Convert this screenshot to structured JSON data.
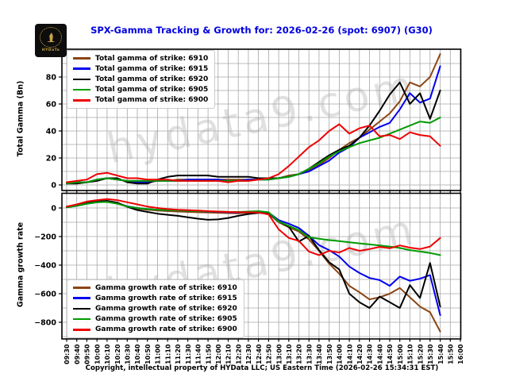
{
  "header": {
    "title": "SPX-Gamma Tracking & Growth for: 2026-02-26 (spot: 6907) (G30)",
    "logo_text": "HYDaTa"
  },
  "watermark": {
    "text": "hydata9.com"
  },
  "footer": {
    "copyright": "Copyright, intellectual property of HYData LLC; US Eastern Time (2026-02-26 15:34:31 EST)"
  },
  "colors": {
    "title": "#0000e0",
    "grid": "#a6a6a6",
    "spine": "#000000",
    "watermark_gray": "#d9d9d9"
  },
  "chart_data": {
    "type": "line",
    "x_tick_labels": [
      "09:30",
      "09:40",
      "09:50",
      "10:00",
      "10:10",
      "10:20",
      "10:30",
      "10:40",
      "10:50",
      "11:00",
      "11:10",
      "11:20",
      "11:30",
      "11:40",
      "11:50",
      "12:00",
      "12:10",
      "12:20",
      "12:30",
      "12:40",
      "12:50",
      "13:00",
      "13:10",
      "13:20",
      "13:30",
      "13:40",
      "13:50",
      "14:00",
      "14:10",
      "14:20",
      "14:30",
      "14:40",
      "14:50",
      "15:00",
      "15:10",
      "15:20",
      "15:30",
      "15:40",
      "15:50",
      "16:00"
    ],
    "sample_interval_minutes": 10,
    "data_start": "09:30",
    "data_end": "15:40",
    "top_panel": {
      "ylabel": "Total Gamma (Bn)",
      "ylim": [
        -4,
        100.5
      ],
      "ytick_values": [
        0,
        20,
        40,
        60,
        80
      ],
      "ytick_labels": [
        "0",
        "20",
        "40",
        "60",
        "80"
      ],
      "grid_step": 10,
      "legend": [
        "Total gamma of strike: 6910",
        "Total gamma of strike: 6915",
        "Total gamma of strike: 6920",
        "Total gamma of strike: 6905",
        "Total gamma of strike: 6900"
      ],
      "series": [
        {
          "name": "6910",
          "color": "#8b4513",
          "values": [
            1,
            2,
            2,
            4,
            5,
            4,
            3,
            3,
            3,
            3,
            3,
            4,
            4,
            4,
            4,
            4,
            4,
            4,
            4,
            4,
            5,
            5,
            7,
            8,
            11,
            15,
            20,
            26,
            31,
            35,
            41,
            47,
            53,
            62,
            76,
            73,
            80,
            97
          ]
        },
        {
          "name": "6915",
          "color": "#0000ee",
          "values": [
            1,
            2,
            2,
            4,
            5,
            4,
            3,
            2,
            2,
            3,
            3,
            3,
            4,
            4,
            4,
            4,
            3,
            3,
            4,
            4,
            4,
            5,
            6,
            8,
            10,
            14,
            18,
            24,
            28,
            35,
            39,
            43,
            46,
            56,
            68,
            61,
            64,
            88
          ]
        },
        {
          "name": "6920",
          "color": "#000000",
          "values": [
            1,
            1,
            2,
            3,
            5,
            5,
            2,
            1,
            1,
            4,
            6,
            7,
            7,
            7,
            7,
            6,
            6,
            6,
            6,
            5,
            5,
            5,
            6,
            8,
            12,
            17,
            22,
            26,
            29,
            35,
            44,
            55,
            67,
            76,
            60,
            68,
            49,
            70
          ]
        },
        {
          "name": "6905",
          "color": "#009b00",
          "values": [
            1,
            2,
            2,
            4,
            5,
            4,
            3,
            3,
            3,
            3,
            3,
            3,
            3,
            3,
            3,
            3,
            3,
            3,
            3,
            4,
            4,
            5,
            6,
            8,
            12,
            16,
            21,
            25,
            28,
            31,
            33,
            35,
            38,
            41,
            44,
            47,
            46,
            50
          ]
        },
        {
          "name": "6900",
          "color": "#ee0000",
          "values": [
            2,
            3,
            4,
            8,
            9,
            7,
            5,
            5,
            4,
            4,
            4,
            3,
            3,
            3,
            3,
            3,
            2,
            3,
            3,
            4,
            5,
            8,
            14,
            21,
            28,
            33,
            40,
            45,
            38,
            42,
            44,
            36,
            37,
            34,
            39,
            37,
            36,
            29
          ]
        }
      ]
    },
    "bottom_panel": {
      "ylabel": "Gamma growth rate",
      "ylim": [
        -917,
        105
      ],
      "ytick_values": [
        0,
        -200,
        -400,
        -600,
        -800
      ],
      "ytick_labels": [
        "0",
        "−200",
        "−400",
        "−600",
        "−800"
      ],
      "grid_step": 100,
      "legend": [
        "Gamma growth rate of strike: 6910",
        "Gamma growth rate of strike: 6915",
        "Gamma growth rate of strike: 6920",
        "Gamma growth rate of strike: 6905",
        "Gamma growth rate of strike: 6900"
      ],
      "series": [
        {
          "name": "6910",
          "color": "#8b4513",
          "values": [
            5,
            15,
            30,
            40,
            45,
            30,
            10,
            -5,
            -12,
            -18,
            -22,
            -25,
            -28,
            -30,
            -32,
            -34,
            -36,
            -38,
            -33,
            -30,
            -40,
            -100,
            -135,
            -165,
            -220,
            -300,
            -390,
            -460,
            -545,
            -590,
            -640,
            -625,
            -600,
            -560,
            -625,
            -690,
            -730,
            -865
          ]
        },
        {
          "name": "6915",
          "color": "#0000ee",
          "values": [
            5,
            15,
            30,
            40,
            45,
            32,
            12,
            0,
            -8,
            -12,
            -15,
            -18,
            -20,
            -22,
            -25,
            -27,
            -30,
            -32,
            -28,
            -25,
            -32,
            -85,
            -110,
            -140,
            -195,
            -260,
            -295,
            -340,
            -410,
            -455,
            -490,
            -505,
            -545,
            -480,
            -510,
            -495,
            -470,
            -750
          ]
        },
        {
          "name": "6920",
          "color": "#000000",
          "values": [
            5,
            18,
            35,
            45,
            50,
            38,
            8,
            -15,
            -28,
            -40,
            -48,
            -55,
            -65,
            -75,
            -83,
            -80,
            -70,
            -55,
            -42,
            -35,
            -35,
            -95,
            -130,
            -235,
            -195,
            -295,
            -380,
            -430,
            -600,
            -660,
            -700,
            -620,
            -660,
            -700,
            -540,
            -630,
            -385,
            -690
          ]
        },
        {
          "name": "6905",
          "color": "#009b00",
          "values": [
            5,
            15,
            30,
            40,
            42,
            30,
            10,
            0,
            -8,
            -12,
            -15,
            -18,
            -20,
            -22,
            -24,
            -25,
            -27,
            -28,
            -25,
            -22,
            -30,
            -95,
            -125,
            -155,
            -205,
            -215,
            -225,
            -232,
            -240,
            -248,
            -255,
            -262,
            -270,
            -280,
            -295,
            -305,
            -315,
            -330
          ]
        },
        {
          "name": "6900",
          "color": "#ee0000",
          "values": [
            10,
            25,
            45,
            55,
            62,
            55,
            40,
            25,
            10,
            0,
            -8,
            -12,
            -15,
            -18,
            -22,
            -25,
            -28,
            -30,
            -30,
            -32,
            -45,
            -150,
            -210,
            -230,
            -305,
            -330,
            -300,
            -312,
            -280,
            -300,
            -288,
            -272,
            -282,
            -262,
            -278,
            -288,
            -270,
            -210
          ]
        }
      ]
    }
  }
}
